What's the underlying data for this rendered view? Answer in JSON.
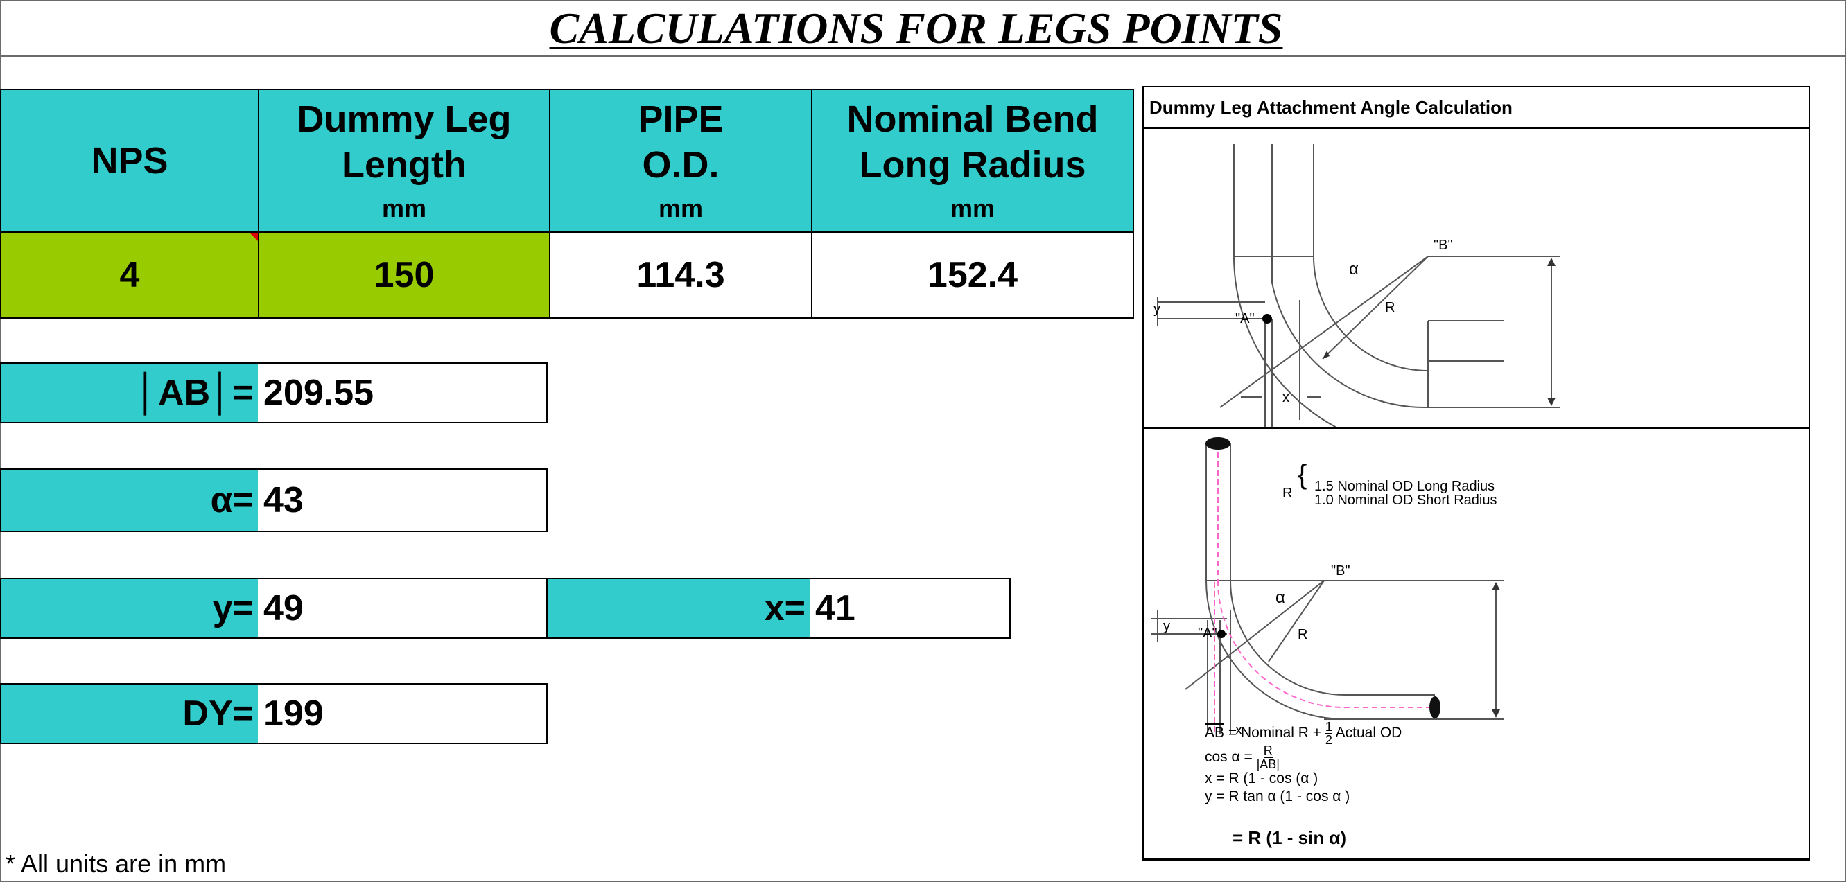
{
  "title": "CALCULATIONS FOR LEGS POINTS",
  "table": {
    "headers": [
      {
        "line1": "NPS",
        "line2": "",
        "unit": ""
      },
      {
        "line1": "Dummy Leg",
        "line2": "Length",
        "unit": "mm"
      },
      {
        "line1": "PIPE",
        "line2": "O.D.",
        "unit": "mm"
      },
      {
        "line1": "Nominal Bend",
        "line2": "Long Radius",
        "unit": "mm"
      }
    ],
    "values": [
      "4",
      "150",
      "114.3",
      "152.4"
    ]
  },
  "results": {
    "ab": {
      "label": "│AB│=",
      "value": "209.55"
    },
    "alpha": {
      "label": "α=",
      "value": "43"
    },
    "y": {
      "label": "y=",
      "value": "49"
    },
    "x": {
      "label": "x=",
      "value": "41"
    },
    "dy": {
      "label": "DY=",
      "value": "199"
    }
  },
  "note": "* All units are in mm",
  "panel": {
    "heading": "Dummy Leg Attachment Angle Calculation",
    "top_labels": {
      "b": "\"B\"",
      "a": "\"A\"",
      "alpha": "α",
      "r": "R",
      "y": "y",
      "x": "x"
    },
    "bottom_labels": {
      "b": "\"B\"",
      "a": "\"A\"",
      "alpha": "α",
      "r": "R",
      "y": "y",
      "x": "x",
      "r_prefix": "R",
      "r_long": "1.5 Nominal OD Long Radius",
      "r_short": "1.0 Nominal OD Short Radius"
    },
    "formulas": {
      "f1_bar": "AB",
      "f1_rest": " = Nominal R + ",
      "f1_num": "1",
      "f1_den": "2",
      "f1_tail": " Actual OD",
      "f2_left": "cos  α  = ",
      "f2_num": "R",
      "f2_den": "|AB|",
      "f3": "x  =  R (1 - cos (α )",
      "f4": "y  =  R tan α  (1 - cos α )",
      "f5": "=   R (1 - sin α)"
    }
  },
  "colors": {
    "header_bg": "#33cccc",
    "input_bg": "#99cc00",
    "border": "#000000",
    "marker": "#dd0000"
  }
}
